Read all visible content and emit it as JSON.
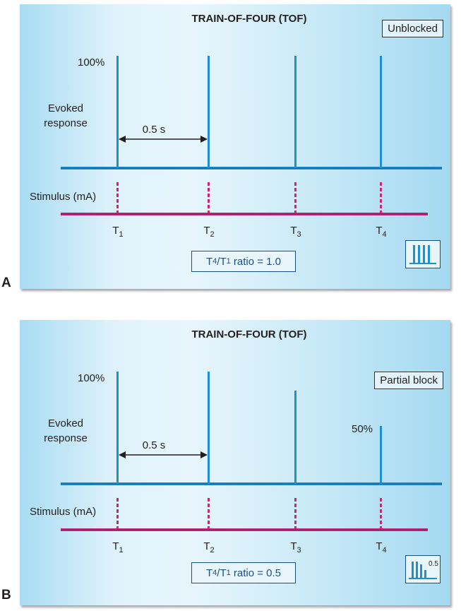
{
  "panel_a": {
    "letter": "A",
    "title": "TRAIN-OF-FOUR (TOF)",
    "state": "Unblocked",
    "y_top_label": "100%",
    "evoked_label_line1": "Evoked",
    "evoked_label_line2": "response",
    "interval_label": "0.5 s",
    "stimulus_label": "Stimulus (mA)",
    "ticks": [
      {
        "main": "T",
        "sub": "1"
      },
      {
        "main": "T",
        "sub": "2"
      },
      {
        "main": "T",
        "sub": "3"
      },
      {
        "main": "T",
        "sub": "4"
      }
    ],
    "ratio": {
      "t4": "T",
      "t4_sub": "4",
      "slash": "/",
      "t1": "T",
      "t1_sub": "1",
      "text": " ratio = 1.0"
    },
    "responses_percent": [
      100,
      100,
      100,
      100
    ]
  },
  "panel_b": {
    "letter": "B",
    "title": "TRAIN-OF-FOUR (TOF)",
    "state": "Partial block",
    "y_top_label": "100%",
    "evoked_label_line1": "Evoked",
    "evoked_label_line2": "response",
    "interval_label": "0.5 s",
    "t4_label": "50%",
    "stimulus_label": "Stimulus (mA)",
    "ticks": [
      {
        "main": "T",
        "sub": "1"
      },
      {
        "main": "T",
        "sub": "2"
      },
      {
        "main": "T",
        "sub": "3"
      },
      {
        "main": "T",
        "sub": "4"
      }
    ],
    "ratio": {
      "t4": "T",
      "t4_sub": "4",
      "slash": "/",
      "t1": "T",
      "t1_sub": "1",
      "text": " ratio = 0.5"
    },
    "icon_label": "0.5",
    "responses_percent": [
      100,
      100,
      80,
      50
    ]
  },
  "colors": {
    "response": "#1e8fd0",
    "stimulus": "#c4287c",
    "dark_blue": "#1b4f8a"
  }
}
